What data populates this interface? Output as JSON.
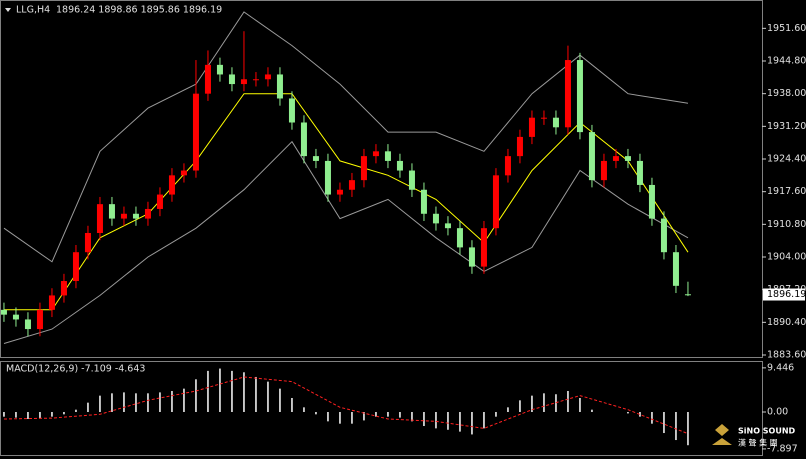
{
  "chart_data": [
    {
      "type": "candlestick",
      "title": "LLG,H4",
      "subtitle": "1896.24 1898.86 1895.86 1896.19",
      "up_color": "#ff0000",
      "down_color": "#90ee90",
      "open": [
        1893,
        1892,
        1891,
        1889,
        1893,
        1896,
        1899,
        1905,
        1909,
        1915,
        1912,
        1913,
        1912,
        1914,
        1917,
        1921,
        1922,
        1938,
        1944,
        1942,
        1940,
        1941,
        1941,
        1942,
        1937,
        1932,
        1925,
        1924,
        1917,
        1918,
        1920,
        1925,
        1926,
        1924,
        1922,
        1918,
        1913,
        1911,
        1910,
        1906,
        1902,
        1910,
        1921,
        1925,
        1929,
        1933,
        1933,
        1931,
        1945,
        1930,
        1920,
        1924,
        1925,
        1924,
        1919,
        1912,
        1905,
        1896.24
      ],
      "high": [
        1894.5,
        1893.5,
        1892.5,
        1894.5,
        1897.5,
        1900.5,
        1906.5,
        1910.5,
        1916.5,
        1916.5,
        1914.5,
        1914.5,
        1915.5,
        1918.5,
        1922.5,
        1923.5,
        1945,
        1947,
        1945.5,
        1943.5,
        1951,
        1942.5,
        1943.5,
        1943.5,
        1938.5,
        1933.5,
        1926.5,
        1925.5,
        1919.5,
        1921.5,
        1926.5,
        1927.5,
        1927.5,
        1925.5,
        1923.5,
        1919.5,
        1914.5,
        1912.5,
        1911.5,
        1907.5,
        1911.5,
        1922.5,
        1926.5,
        1930.5,
        1934.5,
        1934.5,
        1934.5,
        1948,
        1946.5,
        1931.5,
        1925.5,
        1926.5,
        1926.5,
        1925.5,
        1920.5,
        1913.5,
        1906.5,
        1898.86
      ],
      "low": [
        1890.5,
        1889.5,
        1887.5,
        1887.5,
        1891.5,
        1894.5,
        1897.5,
        1903.5,
        1907.5,
        1910.5,
        1910.5,
        1910.5,
        1910.5,
        1912.5,
        1915.5,
        1919.5,
        1920.5,
        1936.5,
        1940.5,
        1938.5,
        1938.5,
        1939.5,
        1939.5,
        1935.5,
        1930.5,
        1923.5,
        1922.5,
        1915.5,
        1915.5,
        1916.5,
        1918.5,
        1923.5,
        1922.5,
        1920.5,
        1916.5,
        1911.5,
        1909.5,
        1908.5,
        1904.5,
        1900.5,
        1900.5,
        1908.5,
        1919.5,
        1923.5,
        1927.5,
        1931.5,
        1929.5,
        1929.5,
        1928.5,
        1918.5,
        1918.5,
        1922.5,
        1922.5,
        1917.5,
        1910.5,
        1903.5,
        1896.5,
        1895.86
      ],
      "close": [
        1892,
        1891,
        1889,
        1893,
        1896,
        1899,
        1905,
        1909,
        1915,
        1912,
        1913,
        1912,
        1914,
        1917,
        1921,
        1922,
        1938,
        1944,
        1942,
        1940,
        1941,
        1941,
        1942,
        1937,
        1932,
        1925,
        1924,
        1917,
        1918,
        1920,
        1925,
        1926,
        1924,
        1922,
        1918,
        1913,
        1911,
        1910,
        1906,
        1902,
        1910,
        1921,
        1925,
        1929,
        1933,
        1933,
        1931,
        1945,
        1930,
        1920,
        1924,
        1925,
        1924,
        1919,
        1912,
        1905,
        1898,
        1896.19
      ],
      "series": [
        {
          "color": "#9a9a9a",
          "x": [
            0,
            4,
            8,
            12,
            16,
            20,
            24,
            28,
            32,
            36,
            40,
            44,
            48,
            52,
            57
          ],
          "values": [
            1910,
            1903,
            1926,
            1935,
            1940,
            1955,
            1948,
            1940,
            1930,
            1930,
            1926,
            1938,
            1946,
            1938,
            1936
          ]
        },
        {
          "color": "#9a9a9a",
          "x": [
            0,
            4,
            8,
            12,
            16,
            20,
            24,
            28,
            32,
            36,
            40,
            44,
            48,
            52,
            57
          ],
          "values": [
            1886,
            1889,
            1896,
            1904,
            1910,
            1918,
            1928,
            1912,
            1916,
            1908,
            1901,
            1906,
            1922,
            1915,
            1908
          ]
        },
        {
          "color": "#ffff00",
          "x": [
            0,
            4,
            8,
            12,
            16,
            20,
            24,
            28,
            32,
            36,
            40,
            44,
            48,
            52,
            57
          ],
          "values": [
            1893,
            1893,
            1908,
            1913,
            1924,
            1938,
            1938,
            1924,
            1921,
            1916,
            1907,
            1922,
            1932,
            1924,
            1905
          ]
        }
      ],
      "xlim": [
        -0.33,
        63.17
      ],
      "ylim": [
        1883.6,
        1957.5
      ],
      "yticks": [
        {
          "value": 1883.6,
          "label": "1883.60"
        },
        {
          "value": 1890.4,
          "label": "1890.40"
        },
        {
          "value": 1897.2,
          "label": "1897.20"
        },
        {
          "value": 1904,
          "label": "1904.00"
        },
        {
          "value": 1910.8,
          "label": "1910.80"
        },
        {
          "value": 1917.6,
          "label": "1917.60"
        },
        {
          "value": 1924.4,
          "label": "1924.40"
        },
        {
          "value": 1931.2,
          "label": "1931.20"
        },
        {
          "value": 1938,
          "label": "1938.00"
        },
        {
          "value": 1944.8,
          "label": "1944.80"
        },
        {
          "value": 1951.6,
          "label": "1951.60"
        }
      ],
      "last_price": {
        "value": 1896.19,
        "label": "1896.19"
      }
    },
    {
      "type": "macd",
      "title": "MACD(12,26,9) -7.109 -4.643",
      "color": "#ffffff",
      "values": [
        -1,
        -1.2,
        -1.5,
        -1.3,
        -1,
        -0.5,
        0.5,
        2,
        3.5,
        4,
        4.2,
        4,
        4,
        4.2,
        4.5,
        5,
        7,
        8.8,
        9.3,
        8.8,
        8.5,
        7.5,
        6.5,
        5,
        3,
        1,
        -0.5,
        -2,
        -2.5,
        -2.5,
        -1.8,
        -1,
        -1,
        -1.2,
        -2,
        -3,
        -3.5,
        -3.8,
        -4.2,
        -4.8,
        -3.5,
        -1,
        1,
        2.5,
        3.5,
        4,
        3.8,
        4.5,
        3,
        0.5,
        0,
        0,
        -0.3,
        -1,
        -2.5,
        -4.5,
        -6,
        -7.109
      ],
      "signal": {
        "color": "#ff2020",
        "x": [
          0,
          4,
          8,
          12,
          16,
          20,
          24,
          28,
          32,
          36,
          40,
          44,
          48,
          52,
          57
        ],
        "values": [
          -1.5,
          -1.3,
          -0.5,
          2.5,
          4.5,
          7.5,
          6.5,
          1,
          -1.5,
          -2,
          -3.5,
          0.5,
          3.5,
          0.5,
          -4.643
        ]
      },
      "xlim": [
        -0.33,
        63.17
      ],
      "ylim": [
        -9.2,
        10.7
      ],
      "yticks": [
        9.446,
        {
          "value": 0,
          "label": "0.00"
        },
        -7.897
      ]
    }
  ],
  "logo": {
    "name": "SiNO SOUND",
    "chinese": "漢 聲 集 團"
  }
}
